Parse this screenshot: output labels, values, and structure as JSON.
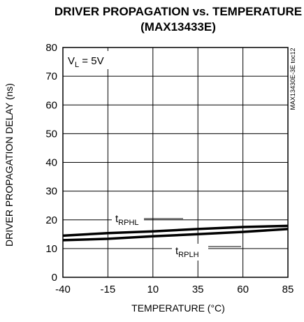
{
  "chart_data": {
    "type": "line",
    "title": "DRIVER PROPAGATION vs. TEMPERATURE",
    "subtitle": "(MAX13433E)",
    "xlabel": "TEMPERATURE (°C)",
    "ylabel": "DRIVER PROPAGATION DELAY (ns)",
    "xlim": [
      -40,
      85
    ],
    "ylim": [
      0,
      80
    ],
    "x_ticks": [
      -40,
      -15,
      10,
      35,
      60,
      85
    ],
    "y_ticks": [
      0,
      10,
      20,
      30,
      40,
      50,
      60,
      70,
      80
    ],
    "grid": true,
    "condition": {
      "var": "V",
      "sub": "L",
      "rest": " = 5V"
    },
    "part_code": "MAX13430E-3E toc12",
    "series": [
      {
        "name_main": "t",
        "name_sub": "RPHL",
        "x": [
          -40,
          -15,
          10,
          35,
          60,
          85
        ],
        "values": [
          14.5,
          15.4,
          16.0,
          16.8,
          17.5,
          17.9
        ],
        "color": "#000000"
      },
      {
        "name_main": "t",
        "name_sub": "RPLH",
        "x": [
          -40,
          -15,
          10,
          35,
          60,
          85
        ],
        "values": [
          12.9,
          13.4,
          14.3,
          15.0,
          15.8,
          16.8
        ],
        "color": "#000000"
      }
    ]
  }
}
